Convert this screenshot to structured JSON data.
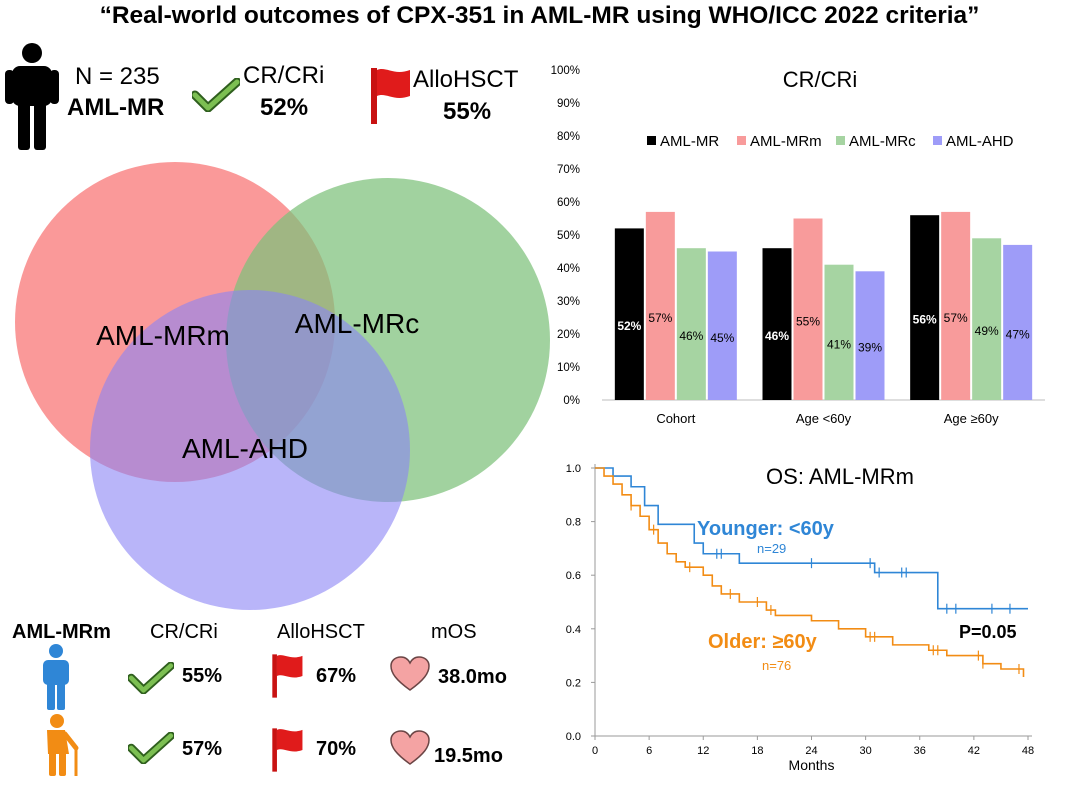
{
  "title": "“Real-world outcomes of CPX-351 in AML-MR using WHO/ICC 2022 criteria”",
  "summary": {
    "n_label": "N = 235",
    "group_label": "AML-MR",
    "crcri_label": "CR/CRi",
    "crcri_value": "52%",
    "allo_label": "AlloHSCT",
    "allo_value": "55%"
  },
  "venn": {
    "labels": [
      "AML-MRm",
      "AML-MRc",
      "AML-AHD"
    ],
    "colors": [
      "#f87171",
      "#7dc17a",
      "#8b83f5"
    ]
  },
  "bottom_table": {
    "group": "AML-MRm",
    "headers": [
      "CR/CRi",
      "AlloHSCT",
      "mOS"
    ],
    "rows": [
      {
        "crcri": "55%",
        "allo": "67%",
        "mos": "38.0mo",
        "icon": "person-young-icon"
      },
      {
        "crcri": "57%",
        "allo": "70%",
        "mos": "19.5mo",
        "icon": "person-elderly-icon"
      }
    ],
    "icons": [
      "check-icon",
      "red-flag-icon",
      "heart-icon"
    ]
  },
  "chart_data": [
    {
      "type": "bar",
      "title": "CR/CRi",
      "categories": [
        "Cohort",
        "Age <60y",
        "Age ≥60y"
      ],
      "series": [
        {
          "name": "AML-MR",
          "color": "#000000",
          "values": [
            52,
            46,
            56
          ]
        },
        {
          "name": "AML-MRm",
          "color": "#f89b9b",
          "values": [
            57,
            55,
            57
          ]
        },
        {
          "name": "AML-MRc",
          "color": "#a6d4a2",
          "values": [
            46,
            41,
            49
          ]
        },
        {
          "name": "AML-AHD",
          "color": "#9e9cf8",
          "values": [
            45,
            39,
            47
          ]
        }
      ],
      "ylim": [
        0,
        100
      ],
      "yticks": [
        "0%",
        "10%",
        "20%",
        "30%",
        "40%",
        "50%",
        "60%",
        "70%",
        "80%",
        "90%",
        "100%"
      ],
      "legend": "top"
    },
    {
      "type": "line",
      "title": "OS: AML-MRm",
      "xlabel": "Months",
      "xticks": [
        0,
        6,
        12,
        18,
        24,
        30,
        36,
        42,
        48
      ],
      "yticks": [
        "0.0",
        "0.2",
        "0.4",
        "0.6",
        "0.8",
        "1.0"
      ],
      "xlim": [
        0,
        48
      ],
      "ylim": [
        0,
        1
      ],
      "pvalue": "P=0.05",
      "series": [
        {
          "name": "Younger: <60y",
          "n": "n=29",
          "color": "#2f86d6",
          "steps": [
            [
              0,
              1.0
            ],
            [
              2,
              0.97
            ],
            [
              4,
              0.93
            ],
            [
              5.5,
              0.86
            ],
            [
              7,
              0.79
            ],
            [
              11,
              0.72
            ],
            [
              12,
              0.68
            ],
            [
              16,
              0.645
            ],
            [
              31,
              0.61
            ],
            [
              38,
              0.475
            ],
            [
              48,
              0.475
            ]
          ],
          "censors": [
            [
              13.5,
              0.68
            ],
            [
              14,
              0.68
            ],
            [
              24,
              0.645
            ],
            [
              30.5,
              0.645
            ],
            [
              31.5,
              0.61
            ],
            [
              34,
              0.61
            ],
            [
              34.5,
              0.61
            ],
            [
              39,
              0.475
            ],
            [
              40,
              0.475
            ],
            [
              44,
              0.475
            ],
            [
              46,
              0.475
            ]
          ]
        },
        {
          "name": "Older: ≥60y",
          "n": "n=76",
          "color": "#f28c14",
          "steps": [
            [
              0,
              1.0
            ],
            [
              1,
              0.97
            ],
            [
              2,
              0.94
            ],
            [
              3,
              0.9
            ],
            [
              4,
              0.86
            ],
            [
              5,
              0.82
            ],
            [
              6,
              0.77
            ],
            [
              7,
              0.72
            ],
            [
              8,
              0.68
            ],
            [
              9,
              0.65
            ],
            [
              10,
              0.63
            ],
            [
              12,
              0.6
            ],
            [
              13,
              0.56
            ],
            [
              14,
              0.53
            ],
            [
              16,
              0.5
            ],
            [
              19,
              0.47
            ],
            [
              20,
              0.45
            ],
            [
              24,
              0.43
            ],
            [
              27,
              0.4
            ],
            [
              30,
              0.37
            ],
            [
              33,
              0.34
            ],
            [
              37,
              0.32
            ],
            [
              39,
              0.3
            ],
            [
              43,
              0.27
            ],
            [
              45,
              0.25
            ],
            [
              47.5,
              0.22
            ]
          ],
          "censors": [
            [
              4,
              0.86
            ],
            [
              6.5,
              0.77
            ],
            [
              10.5,
              0.63
            ],
            [
              15,
              0.53
            ],
            [
              18,
              0.5
            ],
            [
              19.5,
              0.47
            ],
            [
              30.5,
              0.37
            ],
            [
              31,
              0.37
            ],
            [
              37.5,
              0.32
            ],
            [
              38,
              0.32
            ],
            [
              42.5,
              0.3
            ],
            [
              43,
              0.27
            ],
            [
              47,
              0.25
            ]
          ]
        }
      ]
    }
  ]
}
